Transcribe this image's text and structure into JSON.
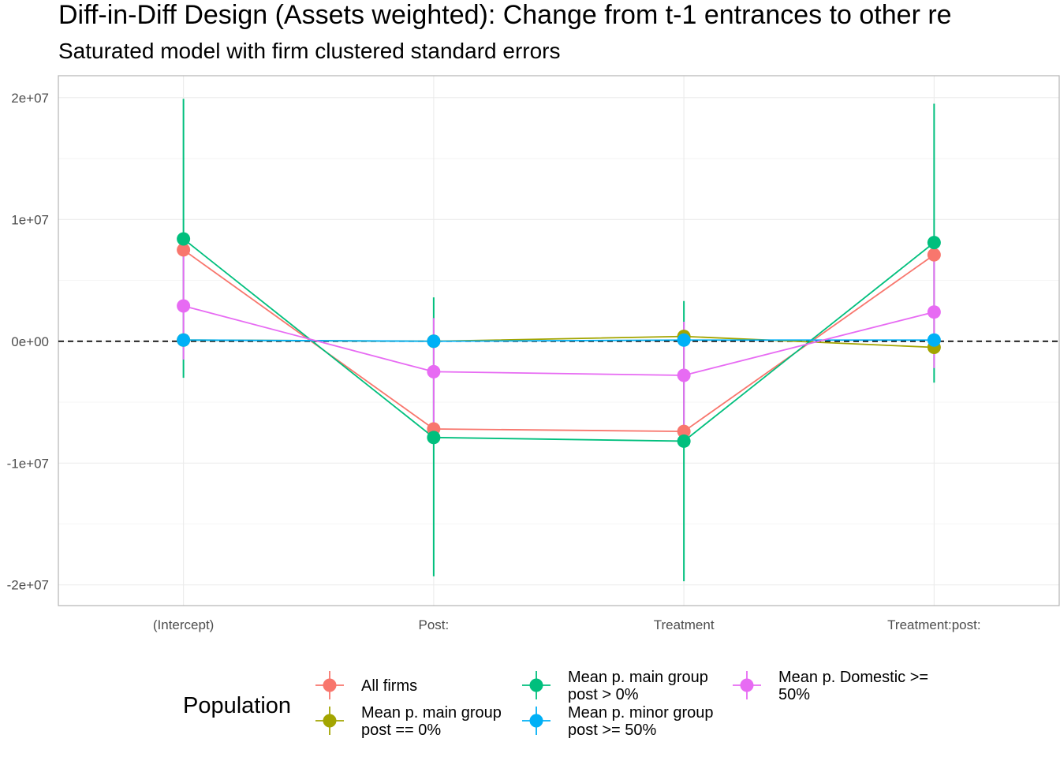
{
  "chart_data": {
    "type": "scatter",
    "title": "Diff-in-Diff Design (Assets weighted): Change from t-1 entrances to other re",
    "subtitle": "Saturated model with firm clustered standard errors",
    "xlabel": "",
    "ylabel": "",
    "categories": [
      "(Intercept)",
      "Post:",
      "Treatment",
      "Treatment:post:"
    ],
    "y_ticks": [
      20000000,
      10000000,
      0,
      -10000000,
      -20000000
    ],
    "y_tick_labels": [
      "2e+07",
      "1e+07",
      "0e+00",
      "-1e+07",
      "-2e+07"
    ],
    "ylim": [
      -21700000,
      21800000
    ],
    "grid": true,
    "reference_line": 0,
    "legend": {
      "title": "Population",
      "position": "bottom",
      "entries": [
        {
          "lines": [
            "All firms"
          ],
          "series_index": 0
        },
        {
          "lines": [
            "Mean p. main group",
            "post == 0%"
          ],
          "series_index": 1
        },
        {
          "lines": [
            "Mean p. main group",
            "post > 0%"
          ],
          "series_index": 2
        },
        {
          "lines": [
            "Mean p. minor group",
            "post >= 50%"
          ],
          "series_index": 3
        },
        {
          "lines": [
            "Mean p. Domestic >=",
            "50%"
          ],
          "series_index": 4
        }
      ]
    },
    "series": [
      {
        "name": "All firms",
        "color": "#F8766D",
        "values": [
          7500000,
          -7200000,
          -7400000,
          7100000
        ],
        "low": [
          7000000,
          -7500000,
          -7700000,
          6700000
        ],
        "high": [
          8000000,
          -6900000,
          -7100000,
          7500000
        ]
      },
      {
        "name": "Mean p. main group post == 0%",
        "color": "#A3A500",
        "values": [
          100000,
          0,
          400000,
          -500000
        ],
        "low": [
          -100000,
          -200000,
          100000,
          -800000
        ],
        "high": [
          300000,
          200000,
          700000,
          -200000
        ]
      },
      {
        "name": "Mean p. main group post > 0%",
        "color": "#00BF7D",
        "values": [
          8400000,
          -7900000,
          -8200000,
          8100000
        ],
        "low": [
          -3000000,
          -19300000,
          -19700000,
          -3400000
        ],
        "high": [
          19900000,
          3600000,
          3300000,
          19500000
        ]
      },
      {
        "name": "Mean p. minor group post >= 50%",
        "color": "#00B0F6",
        "values": [
          100000,
          0,
          100000,
          100000
        ],
        "low": [
          -100000,
          -100000,
          -100000,
          -100000
        ],
        "high": [
          300000,
          100000,
          300000,
          300000
        ]
      },
      {
        "name": "Mean p. Domestic >= 50%",
        "color": "#E76BF3",
        "values": [
          2900000,
          -2500000,
          -2800000,
          2400000
        ],
        "low": [
          -1500000,
          -6900000,
          -7200000,
          -2200000
        ],
        "high": [
          7300000,
          1900000,
          1600000,
          7000000
        ]
      }
    ]
  }
}
